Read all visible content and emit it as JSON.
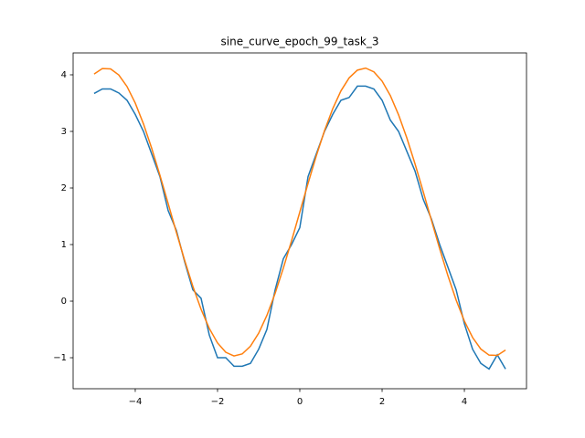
{
  "chart_data": {
    "type": "line",
    "title": "sine_curve_epoch_99_task_3",
    "x": [
      -5.0,
      -4.8,
      -4.6,
      -4.4,
      -4.2,
      -4.0,
      -3.8,
      -3.6,
      -3.4,
      -3.2,
      -3.0,
      -2.8,
      -2.6,
      -2.4,
      -2.2,
      -2.0,
      -1.8,
      -1.6,
      -1.4,
      -1.2,
      -1.0,
      -0.8,
      -0.6,
      -0.4,
      -0.2,
      0.0,
      0.2,
      0.4,
      0.6,
      0.8,
      1.0,
      1.2,
      1.4,
      1.6,
      1.8,
      2.0,
      2.2,
      2.4,
      2.6,
      2.8,
      3.0,
      3.2,
      3.4,
      3.6,
      3.8,
      4.0,
      4.2,
      4.4,
      4.6,
      4.8,
      5.0
    ],
    "series": [
      {
        "color": "#1f77b4",
        "values": [
          3.67,
          3.75,
          3.75,
          3.68,
          3.55,
          3.3,
          3.0,
          2.6,
          2.2,
          1.6,
          1.25,
          0.7,
          0.2,
          0.05,
          -0.6,
          -1.0,
          -1.0,
          -1.15,
          -1.15,
          -1.1,
          -0.85,
          -0.5,
          0.2,
          0.75,
          1.0,
          1.3,
          2.2,
          2.6,
          3.0,
          3.3,
          3.55,
          3.6,
          3.8,
          3.8,
          3.75,
          3.55,
          3.2,
          3.0,
          2.65,
          2.3,
          1.8,
          1.45,
          1.0,
          0.6,
          0.2,
          -0.4,
          -0.85,
          -1.1,
          -1.2,
          -0.95,
          -1.2
        ]
      },
      {
        "color": "#ff7f0e",
        "values": [
          4.015,
          4.11,
          4.104,
          3.997,
          3.793,
          3.501,
          3.132,
          2.701,
          2.225,
          1.724,
          1.216,
          0.722,
          0.263,
          -0.144,
          -0.483,
          -0.739,
          -0.903,
          -0.969,
          -0.933,
          -0.797,
          -0.567,
          -0.251,
          0.138,
          0.584,
          1.069,
          1.575,
          2.081,
          2.566,
          3.012,
          3.401,
          3.717,
          3.947,
          4.083,
          4.119,
          4.053,
          3.889,
          3.633,
          3.294,
          2.887,
          2.428,
          1.934,
          1.426,
          0.925,
          0.449,
          0.018,
          -0.351,
          -0.643,
          -0.847,
          -0.954,
          -0.96,
          -0.865
        ]
      }
    ],
    "xlim": [
      -5.51,
      5.51
    ],
    "ylim": [
      -1.548,
      4.387
    ],
    "xticks": [
      {
        "value": -4,
        "label": "−4"
      },
      {
        "value": -2,
        "label": "−2"
      },
      0,
      2,
      4
    ],
    "yticks": [
      {
        "value": -1,
        "label": "−1"
      },
      0,
      1,
      2,
      3,
      4
    ],
    "grid": false
  }
}
